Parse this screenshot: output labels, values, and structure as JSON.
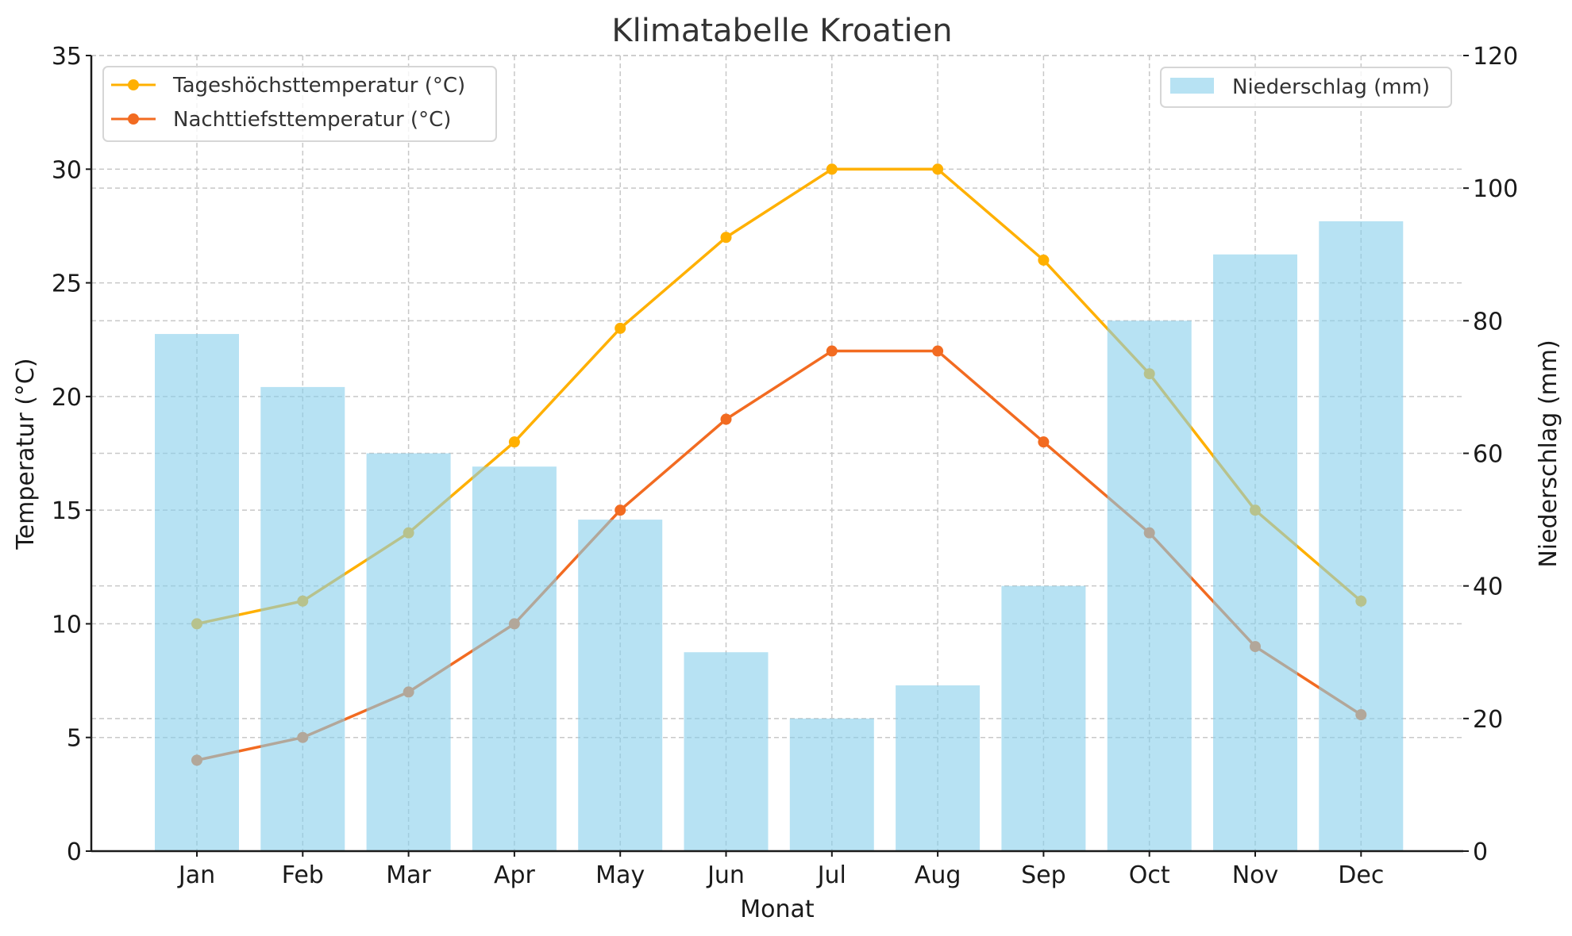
{
  "chart_data": {
    "type": "bar+line",
    "title": "Klimatabelle Kroatien",
    "xlabel": "Monat",
    "ylabel_left": "Temperatur (°C)",
    "ylabel_right": "Niederschlag (mm)",
    "categories": [
      "Jan",
      "Feb",
      "Mar",
      "Apr",
      "May",
      "Jun",
      "Jul",
      "Aug",
      "Sep",
      "Oct",
      "Nov",
      "Dec"
    ],
    "ylim_left": [
      0,
      35
    ],
    "yticks_left": [
      "0",
      "5",
      "10",
      "15",
      "20",
      "25",
      "30",
      "35"
    ],
    "ylim_right": [
      0,
      120
    ],
    "yticks_right": [
      "0",
      "20",
      "40",
      "60",
      "80",
      "100",
      "120"
    ],
    "grid": true,
    "series": [
      {
        "name": "Tageshöchsttemperatur (°C)",
        "type": "line",
        "axis": "left",
        "color": "#FFB000",
        "values": [
          10,
          11,
          14,
          18,
          23,
          27,
          30,
          30,
          26,
          21,
          15,
          11
        ]
      },
      {
        "name": "Nachttiefsttemperatur (°C)",
        "type": "line",
        "axis": "left",
        "color": "#F26B21",
        "values": [
          4,
          5,
          7,
          10,
          15,
          19,
          22,
          22,
          18,
          14,
          9,
          6
        ]
      },
      {
        "name": "Niederschlag (mm)",
        "type": "bar",
        "axis": "right",
        "color": "#87CEEB",
        "values": [
          78,
          70,
          60,
          58,
          50,
          30,
          20,
          25,
          40,
          80,
          90,
          95
        ]
      }
    ],
    "legend_left_placement": "top-left",
    "legend_right_placement": "top-right"
  }
}
